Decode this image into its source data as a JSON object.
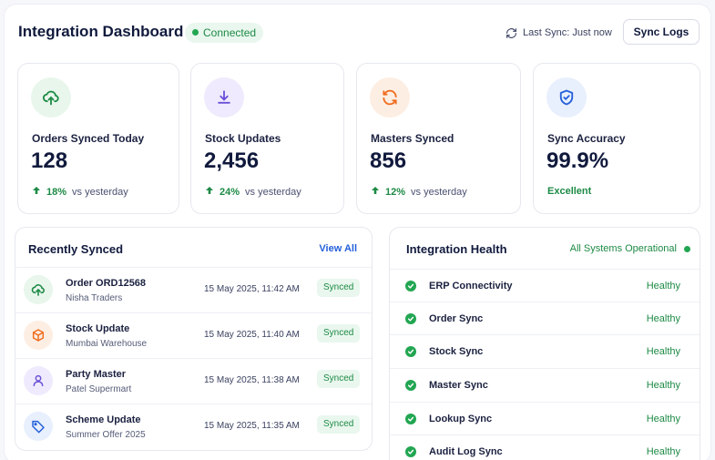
{
  "header": {
    "title": "Integration Dashboard",
    "status": "Connected",
    "last_sync": "Last Sync: Just now",
    "sync_logs_label": "Sync Logs"
  },
  "stats": [
    {
      "label": "Orders Synced Today",
      "value": "128",
      "change": "18%",
      "change_text": "vs yesterday",
      "icon": "cloud-upload-icon",
      "color": "#1d8a45"
    },
    {
      "label": "Stock Updates",
      "value": "2,456",
      "change": "24%",
      "change_text": "vs yesterday",
      "icon": "download-icon",
      "color": "#6b4fd8"
    },
    {
      "label": "Masters Synced",
      "value": "856",
      "change": "12%",
      "change_text": "vs yesterday",
      "icon": "refresh-icon",
      "color": "#ef6c1e"
    },
    {
      "label": "Sync Accuracy",
      "value": "99.9%",
      "status": "Excellent",
      "icon": "shield-check-icon",
      "color": "#2460d9"
    }
  ],
  "recently_synced": {
    "title": "Recently Synced",
    "view_all": "View All",
    "items": [
      {
        "title": "Order ORD12568",
        "subtitle": "Nisha Traders",
        "time": "15 May 2025, 11:42 AM",
        "status": "Synced",
        "icon": "cloud-upload-icon"
      },
      {
        "title": "Stock Update",
        "subtitle": "Mumbai Warehouse",
        "time": "15 May 2025, 11:40 AM",
        "status": "Synced",
        "icon": "box-icon"
      },
      {
        "title": "Party Master",
        "subtitle": "Patel Supermart",
        "time": "15 May 2025, 11:38 AM",
        "status": "Synced",
        "icon": "user-icon"
      },
      {
        "title": "Scheme Update",
        "subtitle": "Summer Offer 2025",
        "time": "15 May 2025, 11:35 AM",
        "status": "Synced",
        "icon": "tag-icon"
      }
    ]
  },
  "integration_health": {
    "title": "Integration Health",
    "status": "All Systems Operational",
    "items": [
      {
        "name": "ERP Connectivity",
        "status": "Healthy"
      },
      {
        "name": "Order Sync",
        "status": "Healthy"
      },
      {
        "name": "Stock Sync",
        "status": "Healthy"
      },
      {
        "name": "Master Sync",
        "status": "Healthy"
      },
      {
        "name": "Lookup Sync",
        "status": "Healthy"
      },
      {
        "name": "Audit Log Sync",
        "status": "Healthy"
      }
    ]
  }
}
